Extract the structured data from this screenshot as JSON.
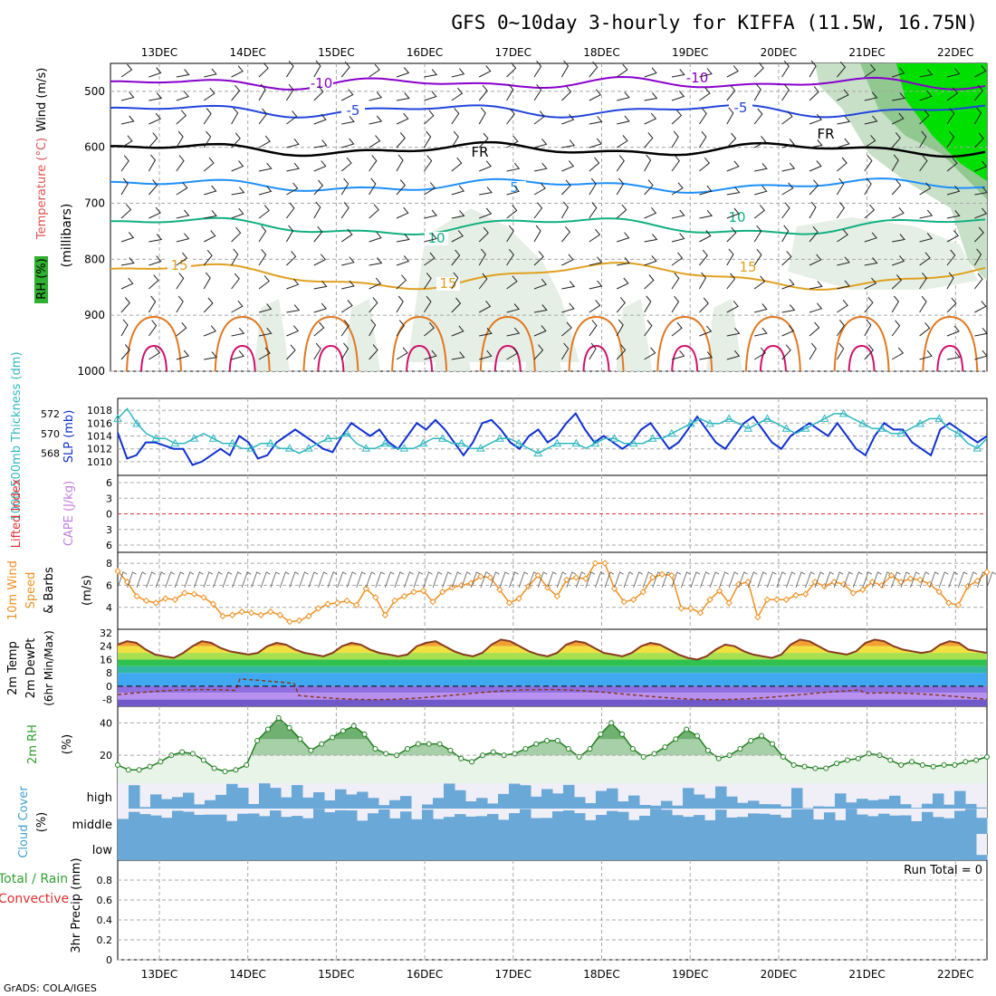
{
  "title": "GFS 0~10day 3-hourly for KIFFA (11.5W, 16.75N)",
  "footer": "GrADS: COLA/IGES",
  "chart_data": {
    "type": "line",
    "x_dates": [
      "13DEC",
      "14DEC",
      "15DEC",
      "16DEC",
      "17DEC",
      "18DEC",
      "19DEC",
      "20DEC",
      "21DEC",
      "22DEC"
    ],
    "panels": {
      "upper_air": {
        "y_label": "(millibars)",
        "y_ticks": [
          "500",
          "600",
          "700",
          "800",
          "900",
          "1000"
        ],
        "side_labels": [
          "RH (%)",
          "Temperature (°C)",
          "Wind (m/s)"
        ],
        "contour_labels": [
          "-10",
          "-5",
          "FR",
          "5",
          "10",
          "15",
          "15",
          "-10",
          "-5",
          "FR",
          "10",
          "15"
        ]
      },
      "pressure": {
        "thickness_label": "1000-500mb Thickness (dm)",
        "slp_label": "SLP (mb)",
        "thickness_ticks": [
          "572",
          "570",
          "568"
        ],
        "slp_ticks": [
          "1018",
          "1016",
          "1014",
          "1012",
          "1010"
        ],
        "slp_values": [
          1014.5,
          1010.5,
          1011,
          1013,
          1013,
          1012.5,
          1012,
          1012,
          1009.5,
          1010,
          1011,
          1012,
          1011,
          1014,
          1013,
          1010.5,
          1011,
          1013,
          1014,
          1015,
          1014,
          1013,
          1012,
          1011.5,
          1014,
          1016,
          1015,
          1014,
          1015,
          1013,
          1012,
          1014,
          1016,
          1015,
          1016.5,
          1015,
          1013,
          1011,
          1013,
          1016,
          1016.5,
          1015,
          1013,
          1012,
          1014,
          1015,
          1013,
          1014,
          1016,
          1017.5,
          1015,
          1013,
          1014,
          1013,
          1012,
          1013,
          1015,
          1016,
          1014,
          1012,
          1013,
          1015,
          1017,
          1015,
          1013,
          1012,
          1014,
          1016,
          1017,
          1015,
          1013,
          1012,
          1014,
          1015,
          1016,
          1015,
          1014,
          1016,
          1014,
          1012,
          1011,
          1014,
          1016,
          1015,
          1015,
          1013,
          1012,
          1011,
          1015,
          1016,
          1015,
          1014,
          1013,
          1014
        ],
        "thickness_values": [
          571.5,
          572.5,
          571,
          570,
          569.5,
          569.5,
          569,
          569,
          569.5,
          570,
          569.5,
          569,
          569,
          568.5,
          568.5,
          569,
          569,
          568.5,
          568.5,
          568,
          568.5,
          569,
          569.5,
          569.5,
          570,
          569,
          568.5,
          568.5,
          569,
          568.5,
          568.5,
          568.5,
          569,
          569.5,
          569.5,
          569,
          569,
          568.5,
          568.5,
          569,
          569.5,
          569.5,
          569,
          568.5,
          568,
          568.5,
          569,
          569,
          569,
          568.5,
          569,
          569.5,
          569.5,
          569,
          569,
          569,
          569.5,
          569.5,
          570,
          570.5,
          571,
          571.5,
          571,
          571,
          571.5,
          571,
          570.5,
          571,
          571.5,
          571,
          570.5,
          570,
          570.5,
          571,
          571.5,
          572,
          572,
          571.5,
          571,
          570.5,
          570.5,
          570,
          570,
          570.5,
          571,
          571.5,
          571.5,
          570.5,
          570,
          569,
          568.5,
          569.5
        ]
      },
      "stability": {
        "lifted_index_label": "Lifted Index",
        "cape_label": "CAPE (J/kg)",
        "ticks": [
          "6",
          "3",
          "0",
          "3",
          "6"
        ]
      },
      "surface_wind": {
        "label_a": "10m Wind",
        "label_b": "Speed",
        "label_c": "& Barbs",
        "unit": "(m/s)",
        "ticks": [
          "8",
          "6",
          "4"
        ],
        "values": [
          7.3,
          6.3,
          5,
          4.6,
          4.4,
          4.8,
          4.7,
          5.3,
          5.2,
          4.9,
          4.3,
          3.2,
          3.3,
          3.6,
          3.5,
          3.3,
          3.6,
          3.3,
          2.7,
          2.8,
          3.2,
          3.9,
          4.3,
          4.4,
          4.6,
          4.2,
          5.7,
          4.9,
          3.3,
          4.6,
          5,
          5.4,
          5.5,
          4.5,
          5.4,
          5.8,
          6,
          6.2,
          6.8,
          6.7,
          5.6,
          4.4,
          4.8,
          5.9,
          6.9,
          5.8,
          5,
          6.5,
          6.7,
          6.6,
          8,
          8,
          5.7,
          4.5,
          4.7,
          5.4,
          6.7,
          7,
          6.9,
          3.9,
          3.9,
          3.5,
          4.7,
          5.5,
          4.4,
          6.1,
          6.3,
          3.1,
          4.7,
          4.7,
          4.7,
          5.1,
          5.2,
          6.3,
          5.9,
          6.3,
          6.1,
          5.3,
          5.6,
          6.3,
          6,
          6.9,
          6.3,
          6.6,
          6.5,
          6.1,
          5.4,
          4.4,
          4.2,
          5.9,
          6.4,
          7.2
        ]
      },
      "temperature": {
        "label_a": "2m Temp",
        "label_b": "2m DewPt",
        "label_c": "(6hr Min/Max)",
        "ticks": [
          "32",
          "24",
          "16",
          "8",
          "0",
          "-8"
        ],
        "temp_values": [
          25,
          27,
          26,
          22,
          19,
          18,
          17,
          20,
          24,
          27,
          26,
          23,
          21,
          20,
          19,
          20,
          24,
          26,
          25,
          22,
          20,
          19,
          18,
          20,
          24,
          26,
          25,
          22,
          20,
          19,
          18,
          19,
          24,
          26,
          27,
          24,
          21,
          19,
          18,
          20,
          25,
          28,
          27,
          24,
          21,
          19,
          18,
          20,
          25,
          27,
          26,
          23,
          20,
          19,
          18,
          20,
          24,
          26,
          25,
          22,
          19,
          17,
          16,
          18,
          22,
          25,
          24,
          21,
          19,
          18,
          17,
          19,
          25,
          28,
          27,
          24,
          21,
          20,
          19,
          21,
          26,
          28,
          27,
          24,
          22,
          21,
          20,
          21,
          25,
          27,
          26,
          22,
          21,
          20
        ]
      },
      "humidity": {
        "label": "2m RH",
        "unit": "(%)",
        "ticks": [
          "40",
          "20"
        ],
        "values": [
          14,
          11,
          11,
          13,
          16,
          20,
          22,
          21,
          17,
          12,
          10,
          11,
          14,
          29,
          36,
          43,
          37,
          30,
          23,
          27,
          31,
          35,
          38,
          33,
          24,
          21,
          20,
          24,
          27,
          27,
          27,
          23,
          18,
          16,
          20,
          22,
          20,
          21,
          24,
          27,
          29,
          29,
          24,
          19,
          24,
          33,
          40,
          33,
          24,
          19,
          21,
          25,
          30,
          36,
          32,
          23,
          18,
          20,
          24,
          29,
          32,
          27,
          19,
          14,
          13,
          12,
          12,
          15,
          17,
          18,
          21,
          20,
          17,
          14,
          16,
          14,
          13,
          14,
          14,
          16,
          17,
          19
        ]
      },
      "clouds": {
        "label": "Cloud Cover",
        "unit": "(%)",
        "levels": [
          "high",
          "middle",
          "low"
        ]
      },
      "precip": {
        "label_a": "Total / Rain",
        "label_b": "Convective",
        "label_c": "3hr Precip (mm)",
        "run_total": "Run Total = 0",
        "ticks": [
          "0.8",
          "0.6",
          "0.4",
          "0.2",
          "0"
        ]
      }
    }
  }
}
